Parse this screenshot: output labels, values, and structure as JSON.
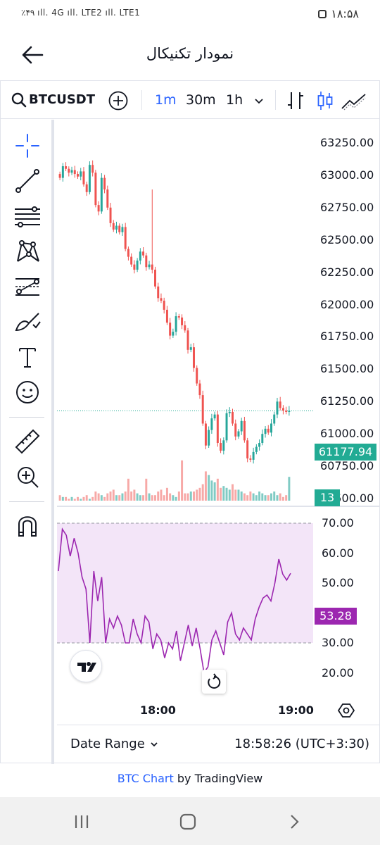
{
  "status_bar": {
    "left_text": "٪۴۹ ıll. 4G ıll. LTE2 ıll. LTE1",
    "time": "۱۸:۵۸"
  },
  "header": {
    "title": "نمودار تکنیکال",
    "back_icon": "arrow-left-icon"
  },
  "toolbar": {
    "symbol": "BTCUSDT",
    "intervals": [
      "1m",
      "30m",
      "1h"
    ],
    "selected_interval": "1m",
    "icons": [
      "search-icon",
      "add-symbol-icon",
      "interval-dropdown-icon",
      "bar-chart-icon",
      "candlestick-icon",
      "area-chart-icon"
    ]
  },
  "tools": [
    "crosshair-icon",
    "trend-line-icon",
    "fib-retracement-icon",
    "pattern-icon",
    "prediction-icon",
    "brush-icon",
    "text-icon",
    "emoji-icon",
    "ruler-icon",
    "zoom-in-icon",
    "magnet-icon"
  ],
  "price_axis": [
    "63250.00",
    "63000.00",
    "62750.00",
    "62500.00",
    "62250.00",
    "62000.00",
    "61750.00",
    "61500.00",
    "61250.00",
    "61000.00",
    "60750.00",
    "60500.00"
  ],
  "last_price": "61177.94",
  "volume_value": "13",
  "rsi_axis": [
    "70.00",
    "60.00",
    "50.00",
    "40.00",
    "30.00",
    "20.00"
  ],
  "rsi_value": "53.28",
  "time_axis": [
    "18:00",
    "19:00"
  ],
  "footer": {
    "date_range": "Date Range",
    "time_readout": "18:58:26 (UTC+3:30)"
  },
  "attribution": {
    "link_text": "BTC Chart",
    "rest_text": "by TradingView"
  },
  "colors": {
    "up": "#26a69a",
    "down": "#ef5350",
    "rsi": "#9c27b0",
    "rsi_band": "#f3e5f8",
    "last_price_tag": "#22ab94",
    "accent": "#2962ff"
  },
  "chart_data": {
    "type": "candlestick",
    "symbol": "BTCUSDT",
    "interval": "1m",
    "ylim": [
      60500,
      63300
    ],
    "close": [
      62980,
      63070,
      63050,
      63020,
      63040,
      63010,
      62990,
      63030,
      62930,
      62870,
      63080,
      63020,
      62770,
      62720,
      62980,
      62890,
      62750,
      62630,
      62580,
      62610,
      62560,
      62600,
      62430,
      62370,
      62310,
      62270,
      62340,
      62410,
      62380,
      62290,
      62310,
      62270,
      62140,
      62050,
      62030,
      61960,
      61860,
      61760,
      61790,
      61910,
      61900,
      61840,
      61800,
      61650,
      61670,
      61510,
      61390,
      61300,
      61080,
      60910,
      61030,
      61120,
      61150,
      60930,
      60870,
      60950,
      61160,
      61170,
      61080,
      60980,
      61020,
      61100,
      60950,
      60810,
      60800,
      60860,
      60900,
      60930,
      61000,
      61040,
      61010,
      61080,
      61150,
      61250,
      61200,
      61180,
      61170,
      61178
    ],
    "volume": [
      3,
      2,
      2,
      1,
      2,
      1,
      2,
      1,
      2,
      3,
      1,
      2,
      5,
      4,
      3,
      2,
      4,
      5,
      6,
      3,
      3,
      4,
      5,
      12,
      5,
      6,
      4,
      3,
      3,
      12,
      4,
      3,
      3,
      5,
      6,
      3,
      7,
      4,
      3,
      2,
      5,
      22,
      4,
      4,
      5,
      5,
      6,
      7,
      9,
      16,
      14,
      11,
      10,
      12,
      7,
      8,
      7,
      6,
      9,
      6,
      6,
      5,
      4,
      3,
      5,
      4,
      3,
      5,
      4,
      3,
      3,
      4,
      5,
      3,
      4,
      2,
      3,
      13
    ],
    "rsi": [
      54,
      68,
      66,
      59,
      65,
      60,
      52,
      48,
      30,
      54,
      44,
      52,
      30,
      38,
      35,
      39,
      36,
      30,
      30,
      38,
      33,
      30,
      39,
      37,
      28,
      33,
      31,
      25,
      30,
      28,
      34,
      24,
      30,
      36,
      29,
      35,
      28,
      20,
      22,
      31,
      34,
      30,
      26,
      37,
      40,
      33,
      31,
      35,
      33,
      31,
      38,
      42,
      45,
      46,
      44,
      50,
      58,
      53,
      51,
      53.28
    ],
    "rsi_band": [
      30,
      70
    ]
  }
}
